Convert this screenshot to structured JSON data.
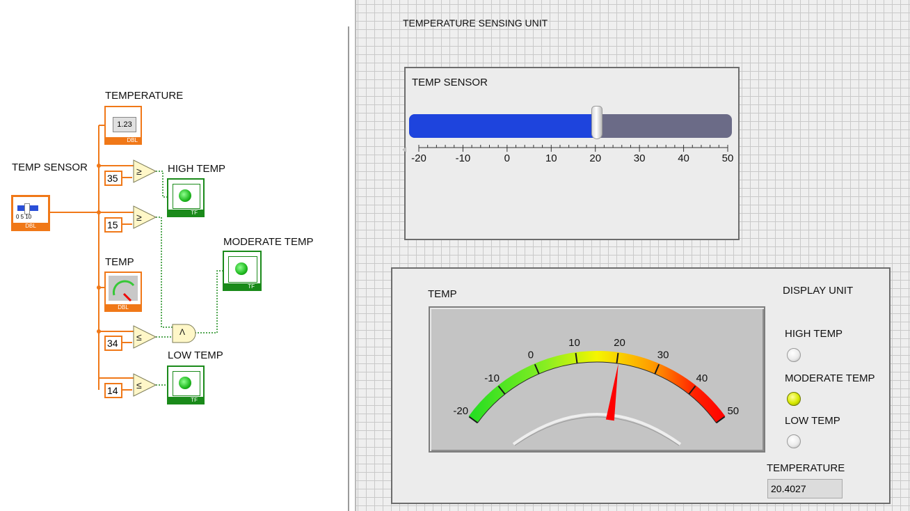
{
  "block_diagram": {
    "temperature_indicator_label": "TEMPERATURE",
    "temperature_indicator_icon": "1.23",
    "temperature_indicator_type": "DBL",
    "temp_sensor_label": "TEMP SENSOR",
    "temp_sensor_type": "DBL",
    "temp_sensor_icon_scale": "0 5 10",
    "const_high": "35",
    "const_moderate_low": "15",
    "const_moderate_high": "34",
    "const_low": "14",
    "high_temp_label": "HIGH TEMP",
    "moderate_temp_label": "MODERATE TEMP",
    "low_temp_label": "LOW TEMP",
    "temp_gauge_label": "TEMP",
    "gauge_type": "DBL",
    "bool_type": "TF",
    "and_symbol": "Λ"
  },
  "front_panel": {
    "title": "TEMPERATURE SENSING UNIT",
    "slider": {
      "label": "TEMP SENSOR",
      "min": -20,
      "max": 50,
      "value": 20.4027,
      "ticks": [
        "-20",
        "-10",
        "0",
        "10",
        "20",
        "30",
        "40",
        "50"
      ],
      "fill_color": "#1e44dd",
      "track_color": "#6b6b87"
    },
    "gauge": {
      "label": "TEMP",
      "min": -20,
      "max": 50,
      "value": 20.4027,
      "ticks": [
        "-20",
        "-10",
        "0",
        "10",
        "20",
        "30",
        "40",
        "50"
      ],
      "needle_color": "#ff0000"
    },
    "display_unit_label": "DISPLAY UNIT",
    "leds": [
      {
        "label": "HIGH TEMP",
        "state": "off"
      },
      {
        "label": "MODERATE TEMP",
        "state": "on"
      },
      {
        "label": "LOW TEMP",
        "state": "off"
      }
    ],
    "temperature_label": "TEMPERATURE",
    "temperature_value": "20.4027"
  }
}
